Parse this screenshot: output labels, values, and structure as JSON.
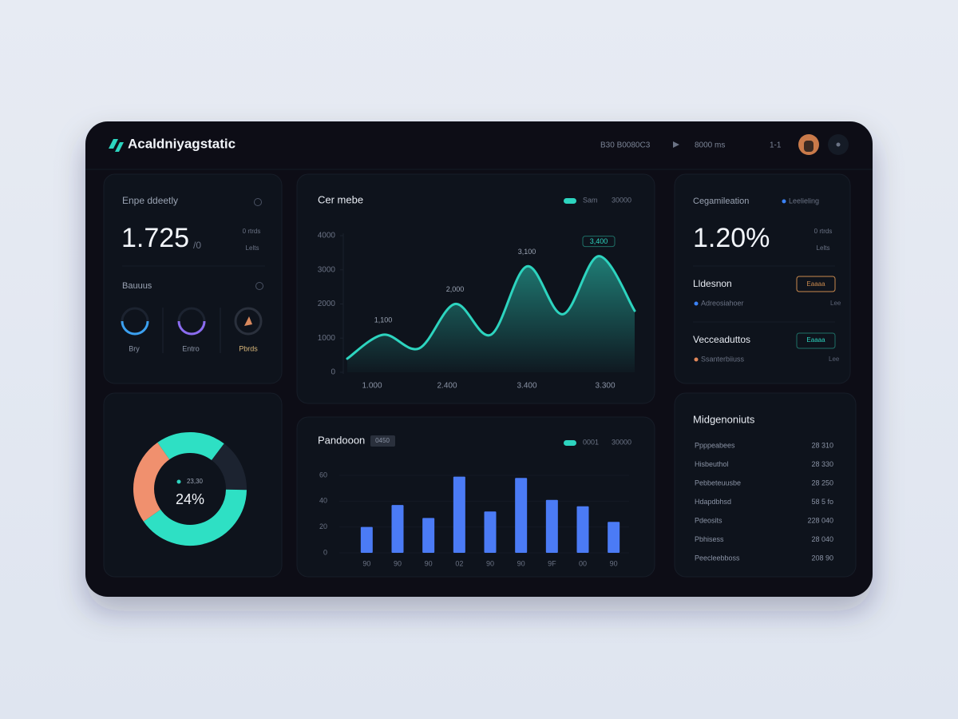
{
  "header": {
    "brand": "Acaldniyagstatic",
    "nav": [
      "B30 B0080C3",
      "8000 ms",
      "1-1"
    ]
  },
  "stat_card": {
    "title": "Enpe ddeetly",
    "value": "1.725",
    "unit": "/0",
    "badge": "0 rtrds",
    "note": "Lelts",
    "section": "Bauuus",
    "gauges": [
      "Bry",
      "Entro",
      "Pbrds"
    ]
  },
  "rate_card": {
    "title": "Cegamileation",
    "legend": "Leelieling",
    "value": "1.20%",
    "badge": "0 rtrds",
    "note": "Lelts",
    "items": [
      {
        "title": "Lldesnon",
        "detail": "Adreosiahoer",
        "button": "Eaaaa",
        "tag": "Lee"
      },
      {
        "title": "Vecceaduttos",
        "detail": "Ssanterbiiuss",
        "button": "Eaaaa",
        "tag": "Lee"
      }
    ]
  },
  "list_card": {
    "title": "Midgenoniuts",
    "rows": [
      [
        "Ppppeabees",
        "28 310"
      ],
      [
        "Hisbeuthol",
        "28 330"
      ],
      [
        "Pebbeteuusbe",
        "28 250"
      ],
      [
        "Hdapdbhsd",
        "58 5 fo"
      ],
      [
        "Pdeosits",
        "228 040"
      ],
      [
        "Pbhisess",
        "28 040"
      ],
      [
        "Peecleebboss",
        "208 90"
      ]
    ]
  },
  "line_chart": {
    "type": "line",
    "title": "Cer mebe",
    "legend": [
      "Sam",
      "30000"
    ],
    "color": "#2dd4bf",
    "values": [
      400,
      1100,
      700,
      2000,
      1100,
      3100,
      1700,
      3400,
      1800
    ],
    "value_labels": [
      null,
      "1,100",
      null,
      "2,000",
      null,
      "3,100",
      null,
      "3,400",
      null
    ],
    "x_labels": [
      "1.000",
      "2.400",
      "3.400",
      "3.300"
    ],
    "ylim": [
      0,
      4000
    ],
    "yticks": [
      0,
      1000,
      2000,
      3000,
      4000
    ],
    "grid": false
  },
  "bar_chart": {
    "type": "bar",
    "title": "Pandooon",
    "badge": "0450",
    "legend": [
      "0001",
      "30000"
    ],
    "color": "#4b7bf5",
    "categories": [
      "90",
      "90",
      "90",
      "02",
      "90",
      "90",
      "9F",
      "00",
      "90"
    ],
    "values": [
      20,
      37,
      27,
      59,
      32,
      58,
      41,
      36,
      24
    ],
    "ylim": [
      0,
      60
    ],
    "yticks": [
      0,
      20,
      40,
      60
    ],
    "grid": true
  },
  "donut": {
    "type": "pie",
    "center_title": "23,30",
    "center_label": "24%",
    "values": [
      20,
      15,
      40,
      25
    ],
    "colors": [
      "#2ee0c4",
      "#1c2330",
      "#2ee0c4",
      "#f0906e"
    ]
  }
}
